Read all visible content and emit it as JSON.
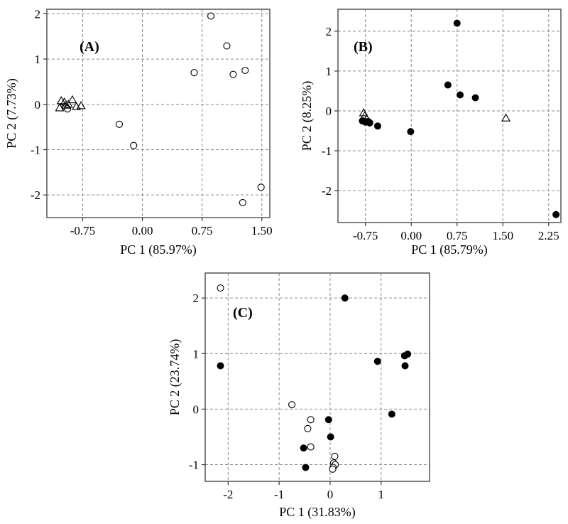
{
  "chart_data": [
    {
      "type": "scatter",
      "panel_label": "(A)",
      "xlabel": "PC 1 (85.97%)",
      "ylabel": "PC 2 (7.73%)",
      "xlim": [
        -1.2,
        1.6
      ],
      "ylim": [
        -2.5,
        2.1
      ],
      "xticks": [
        -0.75,
        0.0,
        0.75,
        1.5
      ],
      "xtick_labels": [
        "-0.75",
        "0.00",
        "0.75",
        "1.50"
      ],
      "yticks": [
        -2,
        -1,
        0,
        1,
        2
      ],
      "ytick_labels": [
        "-2",
        "-1",
        "0",
        "1",
        "2"
      ],
      "grid": true,
      "series": [
        {
          "marker": "open-circle",
          "points": [
            [
              0.86,
              1.95
            ],
            [
              1.06,
              1.29
            ],
            [
              0.65,
              0.7
            ],
            [
              1.14,
              0.66
            ],
            [
              1.29,
              0.75
            ],
            [
              -0.97,
              -0.05
            ],
            [
              -0.94,
              -0.1
            ],
            [
              -0.29,
              -0.44
            ],
            [
              -0.11,
              -0.91
            ],
            [
              1.49,
              -1.83
            ],
            [
              1.26,
              -2.17
            ]
          ]
        },
        {
          "marker": "open-triangle",
          "points": [
            [
              -1.02,
              0.08
            ],
            [
              -0.98,
              0.05
            ],
            [
              -0.88,
              0.1
            ],
            [
              -0.93,
              0.0
            ],
            [
              -0.83,
              -0.05
            ],
            [
              -0.77,
              -0.03
            ],
            [
              -1.04,
              -0.08
            ],
            [
              -0.96,
              -0.02
            ]
          ]
        }
      ]
    },
    {
      "type": "scatter",
      "panel_label": "(B)",
      "xlabel": "PC 1 (85.79%)",
      "ylabel": "PC 2 (8.25%)",
      "xlim": [
        -1.2,
        2.45
      ],
      "ylim": [
        -2.8,
        2.55
      ],
      "xticks": [
        -0.75,
        0.0,
        0.75,
        1.5,
        2.25
      ],
      "xtick_labels": [
        "-0.75",
        "0.00",
        "0.75",
        "1.50",
        "2.25"
      ],
      "yticks": [
        -2,
        -1,
        0,
        1,
        2
      ],
      "ytick_labels": [
        "-2",
        "-1",
        "0",
        "1",
        "2"
      ],
      "grid": true,
      "series": [
        {
          "marker": "filled-circle",
          "points": [
            [
              0.75,
              2.2
            ],
            [
              0.6,
              0.65
            ],
            [
              0.8,
              0.4
            ],
            [
              1.05,
              0.33
            ],
            [
              -0.8,
              -0.25
            ],
            [
              -0.75,
              -0.28
            ],
            [
              -0.7,
              -0.27
            ],
            [
              -0.68,
              -0.3
            ],
            [
              -0.55,
              -0.38
            ],
            [
              -0.01,
              -0.52
            ],
            [
              2.37,
              -2.6
            ]
          ]
        },
        {
          "marker": "open-triangle",
          "points": [
            [
              -0.78,
              -0.05
            ],
            [
              -0.76,
              -0.12
            ],
            [
              -0.73,
              -0.2
            ],
            [
              1.55,
              -0.18
            ]
          ]
        }
      ]
    },
    {
      "type": "scatter",
      "panel_label": "(C)",
      "xlabel": "PC 1 (31.83%)",
      "ylabel": "PC 2 (23.74%)",
      "xlim": [
        -2.45,
        1.95
      ],
      "ylim": [
        -1.3,
        2.45
      ],
      "xticks": [
        -2,
        -1,
        0,
        1
      ],
      "xtick_labels": [
        "-2",
        "-1",
        "0",
        "1"
      ],
      "yticks": [
        -1,
        0,
        1,
        2
      ],
      "ytick_labels": [
        "-1",
        "0",
        "1",
        "2"
      ],
      "grid": true,
      "series": [
        {
          "marker": "open-circle",
          "points": [
            [
              -2.15,
              2.18
            ],
            [
              -0.75,
              0.08
            ],
            [
              -0.38,
              -0.19
            ],
            [
              -0.44,
              -0.35
            ],
            [
              -0.38,
              -0.68
            ],
            [
              0.09,
              -0.85
            ],
            [
              0.07,
              -0.97
            ],
            [
              0.1,
              -1.0
            ],
            [
              0.06,
              -1.05
            ],
            [
              0.05,
              -1.08
            ]
          ]
        },
        {
          "marker": "filled-circle",
          "points": [
            [
              0.29,
              2.0
            ],
            [
              -2.15,
              0.78
            ],
            [
              1.52,
              0.99
            ],
            [
              1.46,
              0.96
            ],
            [
              0.93,
              0.86
            ],
            [
              1.47,
              0.78
            ],
            [
              1.21,
              -0.09
            ],
            [
              -0.03,
              -0.19
            ],
            [
              0.01,
              -0.5
            ],
            [
              -0.52,
              -0.7
            ],
            [
              -0.48,
              -1.05
            ]
          ]
        }
      ]
    }
  ]
}
